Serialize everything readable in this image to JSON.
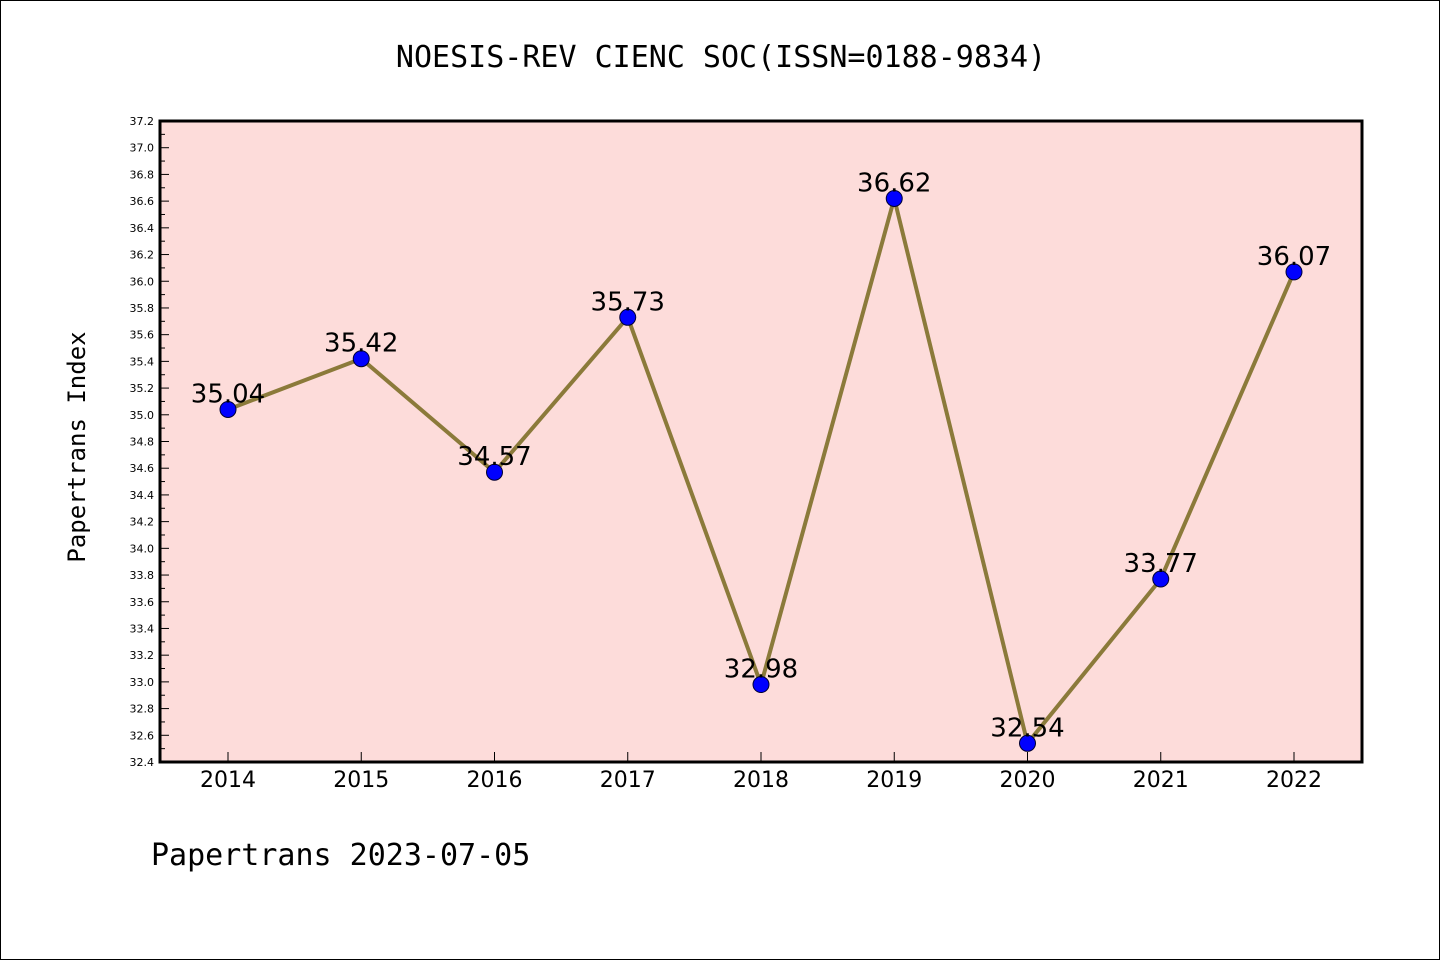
{
  "footer": "Papertrans 2023-07-05",
  "colors": {
    "plot_background": "#fddcda",
    "line": "#8b7a3a",
    "marker": "#0000ff",
    "axis": "#000000"
  },
  "chart_data": {
    "type": "line",
    "title": "NOESIS-REV CIENC SOC(ISSN=0188-9834)",
    "xlabel": "",
    "ylabel": "Papertrans Index",
    "categories": [
      "2014",
      "2015",
      "2016",
      "2017",
      "2018",
      "2019",
      "2020",
      "2021",
      "2022"
    ],
    "values": [
      35.04,
      35.42,
      34.57,
      35.73,
      32.98,
      36.62,
      32.54,
      33.77,
      36.07
    ],
    "data_labels": [
      "35.04",
      "35.42",
      "34.57",
      "35.73",
      "32.98",
      "36.62",
      "32.54",
      "33.77",
      "36.07"
    ],
    "ylim": [
      32.4,
      37.2
    ],
    "yticks": [
      "32.4",
      "32.6",
      "32.8",
      "33.0",
      "33.2",
      "33.4",
      "33.6",
      "33.8",
      "34.0",
      "34.2",
      "34.4",
      "34.6",
      "34.8",
      "35.0",
      "35.2",
      "35.4",
      "35.6",
      "35.8",
      "36.0",
      "36.2",
      "36.4",
      "36.6",
      "36.8",
      "37.0",
      "37.2"
    ],
    "grid": false,
    "legend": "none"
  }
}
